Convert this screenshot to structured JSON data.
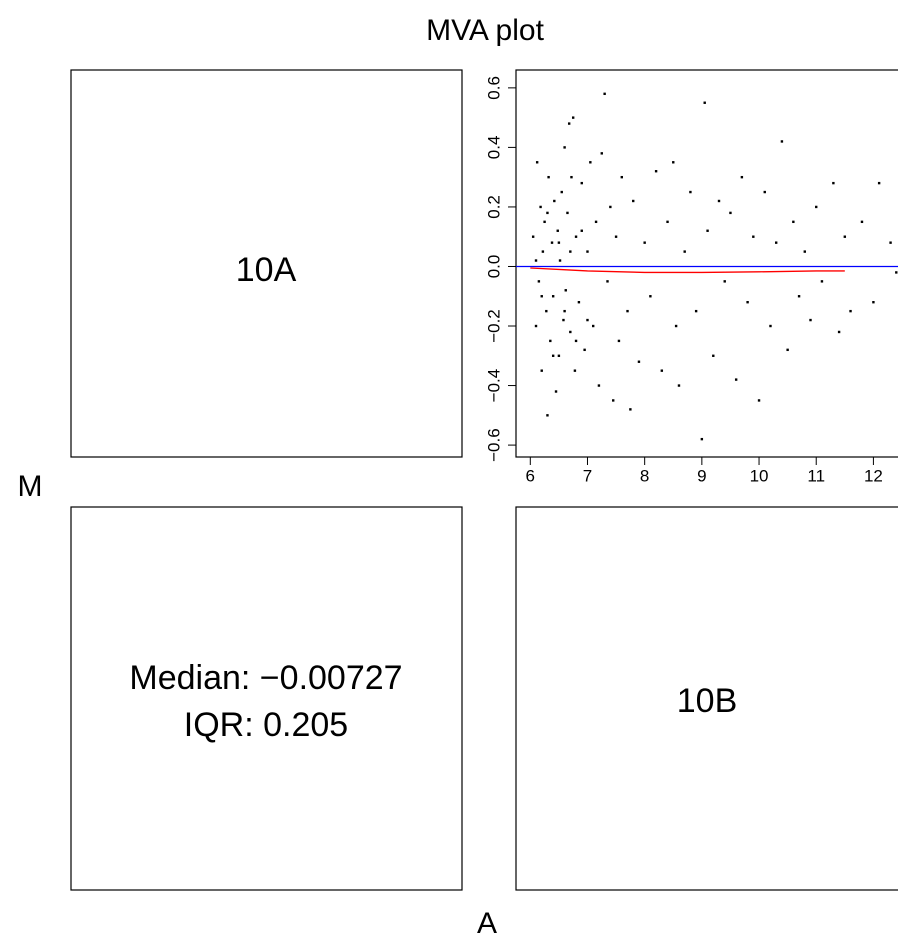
{
  "chart_data": {
    "type": "scatter",
    "title": "MVA plot",
    "x_label": "A",
    "y_label": "M",
    "panel_labels": [
      "10A",
      "10B"
    ],
    "annotations": [
      "Median: −0.00727",
      "IQR: 0.205"
    ],
    "color": "#000000",
    "xlim": [
      5.75,
      12.43
    ],
    "ylim": [
      -0.64,
      0.66
    ],
    "xticks": [
      6,
      7,
      8,
      9,
      10,
      11,
      12
    ],
    "yticks": [
      {
        "value": -0.6,
        "label": "−0.6"
      },
      {
        "value": -0.4,
        "label": "−0.4"
      },
      {
        "value": -0.2,
        "label": "−0.2"
      },
      {
        "value": 0,
        "label": "0.0"
      },
      0.2,
      0.4,
      0.6
    ],
    "reference_line": 0,
    "reference_color": "#0000ff",
    "fit": {
      "color": "#ff0000",
      "x": [
        6,
        6.5,
        7,
        8,
        9,
        10,
        11,
        11.5
      ],
      "y": [
        -0.005,
        -0.01,
        -0.015,
        -0.02,
        -0.02,
        -0.018,
        -0.015,
        -0.015
      ]
    },
    "x": [
      6.05,
      6.1,
      6.12,
      6.15,
      6.18,
      6.2,
      6.22,
      6.25,
      6.28,
      6.3,
      6.32,
      6.35,
      6.38,
      6.4,
      6.42,
      6.45,
      6.48,
      6.5,
      6.52,
      6.55,
      6.58,
      6.6,
      6.62,
      6.65,
      6.68,
      6.7,
      6.72,
      6.75,
      6.78,
      6.8,
      6.85,
      6.9,
      6.95,
      7.0,
      7.05,
      7.1,
      7.15,
      7.2,
      7.25,
      7.3,
      7.35,
      7.4,
      7.45,
      7.5,
      7.55,
      7.6,
      7.7,
      7.75,
      7.8,
      7.9,
      8.0,
      8.1,
      8.2,
      8.3,
      8.4,
      8.5,
      8.55,
      8.6,
      8.7,
      8.8,
      8.9,
      9.0,
      9.05,
      9.1,
      9.2,
      9.3,
      9.4,
      9.5,
      9.6,
      9.7,
      9.8,
      9.9,
      10.0,
      10.1,
      10.2,
      10.3,
      10.4,
      10.5,
      10.6,
      10.7,
      10.8,
      10.9,
      11.0,
      11.1,
      11.3,
      11.4,
      11.5,
      11.6,
      11.8,
      12.0,
      12.1,
      12.3,
      12.4,
      6.1,
      6.2,
      6.3,
      6.4,
      6.5,
      6.6,
      6.7,
      6.8,
      6.9,
      7.0
    ],
    "y": [
      0.1,
      -0.2,
      0.35,
      -0.05,
      0.2,
      -0.35,
      0.05,
      0.15,
      -0.15,
      -0.5,
      0.3,
      -0.25,
      0.08,
      -0.1,
      0.22,
      -0.42,
      0.12,
      -0.3,
      0.02,
      0.25,
      -0.18,
      0.4,
      -0.08,
      0.18,
      0.48,
      -0.22,
      0.3,
      0.5,
      -0.35,
      0.1,
      -0.12,
      0.28,
      -0.28,
      0.05,
      0.35,
      -0.2,
      0.15,
      -0.4,
      0.38,
      0.58,
      -0.05,
      0.2,
      -0.45,
      0.1,
      -0.25,
      0.3,
      -0.15,
      -0.48,
      0.22,
      -0.32,
      0.08,
      -0.1,
      0.32,
      -0.35,
      0.15,
      0.35,
      -0.2,
      -0.4,
      0.05,
      0.25,
      -0.15,
      -0.58,
      0.55,
      0.12,
      -0.3,
      0.22,
      -0.05,
      0.18,
      -0.38,
      0.3,
      -0.12,
      0.1,
      -0.45,
      0.25,
      -0.2,
      0.08,
      0.42,
      -0.28,
      0.15,
      -0.1,
      0.05,
      -0.18,
      0.2,
      -0.05,
      0.28,
      -0.22,
      0.1,
      -0.15,
      0.15,
      -0.12,
      0.28,
      0.08,
      -0.02,
      0.02,
      -0.1,
      0.18,
      -0.3,
      0.08,
      -0.15,
      0.05,
      -0.25,
      0.12,
      -0.18
    ]
  }
}
